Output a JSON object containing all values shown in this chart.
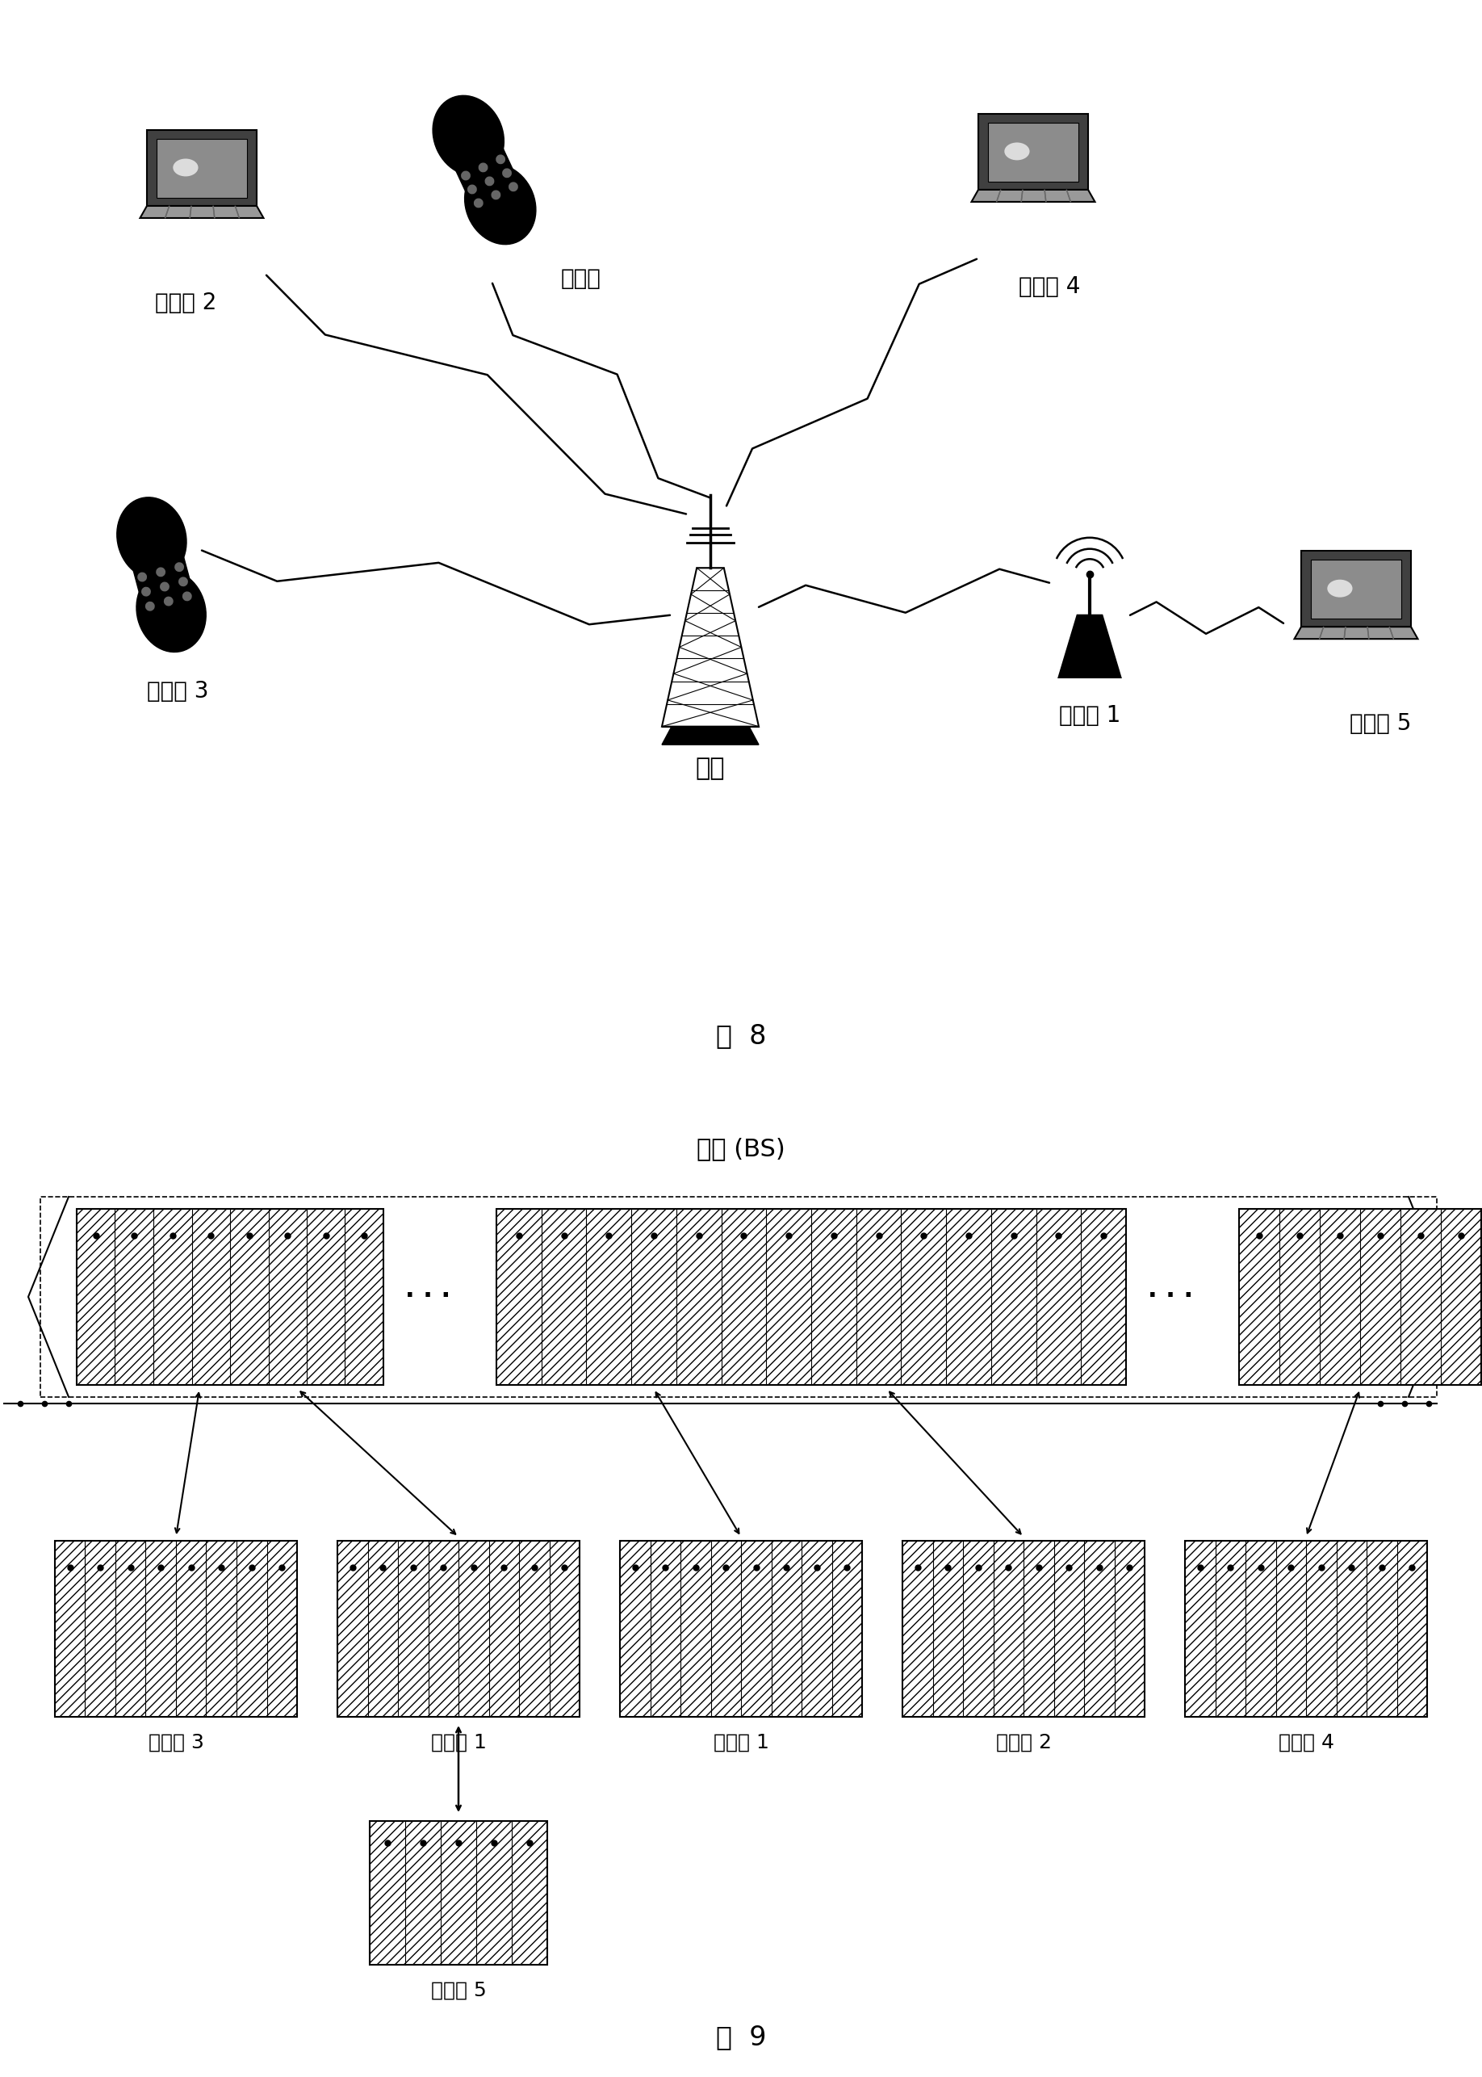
{
  "fig8_label": "图  8",
  "fig9_label": "图  9",
  "bs_label": "基站",
  "bs_ofdm_label": "基站 (BS)",
  "relay_label": "中继站 1",
  "station_label_top": "用户站",
  "user2_label": "用户站 2",
  "user3_label": "用户站 3",
  "user4_label": "用户站 4",
  "user5_label": "用户站 5",
  "fig9_bottom_labels": [
    "用户站 3",
    "中继站 1",
    "用户站 1",
    "用户站 2",
    "用户站 4"
  ],
  "fig9_relay_sub_label": "用户站 5",
  "bg_color": "#ffffff"
}
